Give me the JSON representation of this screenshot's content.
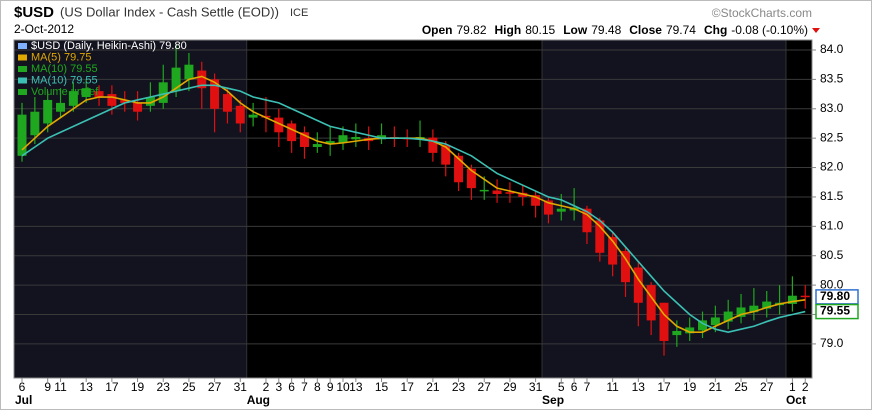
{
  "header": {
    "symbol": "$USD",
    "description": "(US Dollar Index - Cash Settle (EOD))",
    "exchange": "ICE",
    "date": "2-Oct-2012",
    "credit": "©StockCharts.com",
    "quote": [
      {
        "label": "Open",
        "value": "79.82"
      },
      {
        "label": "High",
        "value": "80.15"
      },
      {
        "label": "Low",
        "value": "79.48"
      },
      {
        "label": "Close",
        "value": "79.74"
      },
      {
        "label": "Chg",
        "value": "-0.08 (-0.10%)"
      }
    ]
  },
  "chart_data": {
    "type": "candlestick",
    "categories": [
      "6",
      null,
      "9",
      "11",
      null,
      "13",
      null,
      "17",
      null,
      "19",
      null,
      "23",
      null,
      "25",
      null,
      "27",
      null,
      "31",
      null,
      "2",
      "3",
      "6",
      "7",
      "8",
      "9",
      "10",
      "13",
      null,
      "15",
      null,
      "17",
      null,
      "21",
      null,
      "23",
      null,
      "27",
      null,
      "29",
      null,
      "31",
      null,
      "5",
      "6",
      "7",
      null,
      "11",
      null,
      "13",
      null,
      "17",
      null,
      "19",
      null,
      "21",
      null,
      "25",
      null,
      "27",
      null,
      "1",
      "2"
    ],
    "months": [
      {
        "index": 0,
        "label": "Jul"
      },
      {
        "index": 18,
        "label": "Aug"
      },
      {
        "index": 41,
        "label": "Sep"
      },
      {
        "index": 60,
        "label": "Oct"
      }
    ],
    "open": [
      82.2,
      82.55,
      82.75,
      82.95,
      83.05,
      83.2,
      83.3,
      83.25,
      83.15,
      83.1,
      83.05,
      83.1,
      83.3,
      83.5,
      83.65,
      83.5,
      83.25,
      83.05,
      82.85,
      82.88,
      82.85,
      82.75,
      82.6,
      82.35,
      82.4,
      82.42,
      82.48,
      82.5,
      82.48,
      82.52,
      82.51,
      82.5,
      82.51,
      82.38,
      82.2,
      81.98,
      81.6,
      81.61,
      81.58,
      81.57,
      81.53,
      81.44,
      81.25,
      81.27,
      81.3,
      81.1,
      80.82,
      80.58,
      80.3,
      80.0,
      79.7,
      79.15,
      79.18,
      79.23,
      79.32,
      79.38,
      79.46,
      79.54,
      79.6,
      79.66,
      79.68,
      79.82
    ],
    "close": [
      82.9,
      82.95,
      83.15,
      83.1,
      83.3,
      83.35,
      83.2,
      83.05,
      83.1,
      82.95,
      83.2,
      83.45,
      83.7,
      83.75,
      83.35,
      83.0,
      82.95,
      82.75,
      82.9,
      82.85,
      82.6,
      82.45,
      82.35,
      82.4,
      82.45,
      82.55,
      82.52,
      82.45,
      82.55,
      82.5,
      82.48,
      82.52,
      82.25,
      82.05,
      81.75,
      81.65,
      81.62,
      81.55,
      81.56,
      81.5,
      81.35,
      81.2,
      81.3,
      81.32,
      80.9,
      80.55,
      80.35,
      80.05,
      79.7,
      79.4,
      79.05,
      79.22,
      79.28,
      79.4,
      79.45,
      79.55,
      79.62,
      79.65,
      79.72,
      79.7,
      79.82,
      79.8
    ],
    "high": [
      83.1,
      83.2,
      83.3,
      83.35,
      83.45,
      83.5,
      83.4,
      83.4,
      83.3,
      83.3,
      83.45,
      83.75,
      84.1,
      83.95,
      83.8,
      83.6,
      83.35,
      83.15,
      83.1,
      83.2,
      83.0,
      82.8,
      82.7,
      82.6,
      82.7,
      82.7,
      82.75,
      82.7,
      82.75,
      82.7,
      82.65,
      82.8,
      82.65,
      82.45,
      82.25,
      82.05,
      81.85,
      81.8,
      81.75,
      81.7,
      81.6,
      81.5,
      81.55,
      81.65,
      81.35,
      81.15,
      80.9,
      80.65,
      80.4,
      80.05,
      79.7,
      79.4,
      79.45,
      79.55,
      79.65,
      79.75,
      79.85,
      79.95,
      79.9,
      80.0,
      80.15,
      80.0
    ],
    "low": [
      82.1,
      82.4,
      82.6,
      82.85,
      82.95,
      83.1,
      83.05,
      82.9,
      82.95,
      82.8,
      82.95,
      83.0,
      83.2,
      83.3,
      83.0,
      82.6,
      82.75,
      82.6,
      82.7,
      82.6,
      82.35,
      82.25,
      82.15,
      82.25,
      82.2,
      82.3,
      82.35,
      82.3,
      82.4,
      82.35,
      82.35,
      82.35,
      82.1,
      81.85,
      81.6,
      81.45,
      81.45,
      81.4,
      81.4,
      81.35,
      81.15,
      81.05,
      81.1,
      81.1,
      80.7,
      80.4,
      80.15,
      79.8,
      79.3,
      79.15,
      78.8,
      78.95,
      79.05,
      79.1,
      79.2,
      79.25,
      79.35,
      79.4,
      79.45,
      79.5,
      79.55,
      79.6
    ],
    "up_color": "#1fa71f",
    "down_color": "#e01010",
    "lines": [
      {
        "name": "MA(5) 79.75",
        "color": "#e0a800",
        "values": [
          82.3,
          82.5,
          82.7,
          82.85,
          83.0,
          83.15,
          83.2,
          83.2,
          83.15,
          83.1,
          83.1,
          83.2,
          83.35,
          83.5,
          83.55,
          83.45,
          83.3,
          83.1,
          82.95,
          82.85,
          82.75,
          82.65,
          82.55,
          82.45,
          82.4,
          82.42,
          82.45,
          82.48,
          82.5,
          82.5,
          82.5,
          82.5,
          82.45,
          82.35,
          82.15,
          81.95,
          81.8,
          81.65,
          81.6,
          81.55,
          81.5,
          81.4,
          81.35,
          81.3,
          81.2,
          81.0,
          80.75,
          80.45,
          80.1,
          79.8,
          79.5,
          79.3,
          79.2,
          79.2,
          79.3,
          79.4,
          79.5,
          79.55,
          79.62,
          79.68,
          79.72,
          79.75
        ]
      },
      {
        "name": "MA(10) 79.55",
        "color": "#3cc0b4",
        "values": [
          82.2,
          82.35,
          82.5,
          82.6,
          82.7,
          82.8,
          82.9,
          83.0,
          83.1,
          83.15,
          83.2,
          83.25,
          83.3,
          83.35,
          83.4,
          83.4,
          83.35,
          83.3,
          83.2,
          83.15,
          83.1,
          83.0,
          82.9,
          82.8,
          82.7,
          82.65,
          82.6,
          82.55,
          82.5,
          82.5,
          82.5,
          82.48,
          82.45,
          82.4,
          82.3,
          82.2,
          82.05,
          81.9,
          81.8,
          81.7,
          81.6,
          81.5,
          81.45,
          81.35,
          81.25,
          81.1,
          80.9,
          80.65,
          80.4,
          80.15,
          79.9,
          79.7,
          79.5,
          79.35,
          79.25,
          79.2,
          79.25,
          79.3,
          79.38,
          79.45,
          79.5,
          79.55
        ]
      }
    ],
    "legend": [
      {
        "label": "$USD (Daily, Heikin-Ashi) 79.80",
        "color": "#7fb0ff"
      },
      {
        "label": "MA(5) 79.75",
        "color": "#e0a800"
      },
      {
        "label": "MA(10) 79.55",
        "color": "#1fa71f"
      },
      {
        "label": "MA(10) 79.55",
        "color": "#3cc0b4"
      },
      {
        "label": "Volume undef",
        "color": "#1fa71f"
      }
    ],
    "last_labels": [
      {
        "value": 79.8,
        "label": "79.80",
        "color": "#3070d0"
      },
      {
        "value": 79.55,
        "label": "79.55",
        "color": "#1fa71f"
      }
    ],
    "ylim": [
      78.42,
      84.17
    ],
    "yticks": [
      {
        "value": 79,
        "label": "79.0"
      },
      79.5,
      {
        "value": 80,
        "label": "80.0"
      },
      80.5,
      {
        "value": 81,
        "label": "81.0"
      },
      81.5,
      {
        "value": 82,
        "label": "82.0"
      },
      82.5,
      {
        "value": 83,
        "label": "83.0"
      },
      83.5,
      {
        "value": 84,
        "label": "84.0"
      }
    ],
    "grid": true
  }
}
